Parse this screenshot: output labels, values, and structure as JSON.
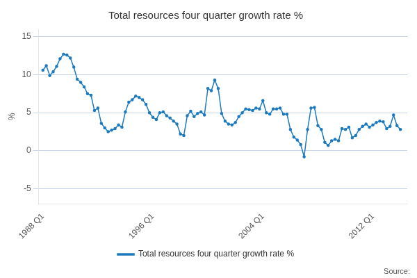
{
  "chart_data": {
    "type": "line",
    "title": "Total resources four quarter growth rate %",
    "ylabel": "%",
    "annotations": [
      "Source:"
    ],
    "x": [
      1988,
      1988.25,
      1988.5,
      1988.75,
      1989,
      1989.25,
      1989.5,
      1989.75,
      1990,
      1990.25,
      1990.5,
      1990.75,
      1991,
      1991.25,
      1991.5,
      1991.75,
      1992,
      1992.25,
      1992.5,
      1992.75,
      1993,
      1993.25,
      1993.5,
      1993.75,
      1994,
      1994.25,
      1994.5,
      1994.75,
      1995,
      1995.25,
      1995.5,
      1995.75,
      1996,
      1996.25,
      1996.5,
      1996.75,
      1997,
      1997.25,
      1997.5,
      1997.75,
      1998,
      1998.25,
      1998.5,
      1998.75,
      1999,
      1999.25,
      1999.5,
      1999.75,
      2000,
      2000.25,
      2000.5,
      2000.75,
      2001,
      2001.25,
      2001.5,
      2001.75,
      2002,
      2002.25,
      2002.5,
      2002.75,
      2003,
      2003.25,
      2003.5,
      2003.75,
      2004,
      2004.25,
      2004.5,
      2004.75,
      2005,
      2005.25,
      2005.5,
      2005.75,
      2006,
      2006.25,
      2006.5,
      2006.75,
      2007,
      2007.25,
      2007.5,
      2007.75,
      2008,
      2008.25,
      2008.5,
      2008.75,
      2009,
      2009.25,
      2009.5,
      2009.75,
      2010,
      2010.25,
      2010.5,
      2010.75,
      2011,
      2011.25,
      2011.5,
      2011.75,
      2012,
      2012.25,
      2012.5,
      2012.75,
      2013,
      2013.25,
      2013.5,
      2013.75,
      2014
    ],
    "series": [
      {
        "name": "Total resources four quarter growth rate %",
        "color": "#1c7abf",
        "marker": "point",
        "values": [
          10.6,
          11.2,
          9.9,
          10.4,
          11.1,
          12.1,
          12.7,
          12.6,
          12.2,
          11.0,
          9.4,
          9.0,
          8.4,
          7.5,
          7.3,
          5.3,
          5.6,
          3.6,
          3.0,
          2.5,
          2.7,
          2.9,
          3.4,
          3.1,
          5.1,
          6.4,
          6.7,
          7.2,
          7.0,
          6.7,
          6.1,
          5.0,
          4.4,
          4.1,
          5.0,
          5.1,
          4.6,
          4.3,
          3.9,
          3.5,
          2.2,
          2.0,
          4.6,
          5.2,
          4.5,
          4.9,
          5.1,
          4.7,
          8.2,
          7.9,
          9.3,
          8.2,
          4.9,
          3.9,
          3.5,
          3.4,
          3.7,
          4.5,
          5.0,
          5.5,
          5.4,
          5.3,
          5.6,
          5.5,
          6.6,
          5.0,
          4.8,
          5.5,
          5.5,
          5.6,
          4.8,
          4.8,
          2.8,
          1.8,
          1.4,
          0.8,
          -0.8,
          2.8,
          5.6,
          5.7,
          3.3,
          2.8,
          1.1,
          0.7,
          1.3,
          1.5,
          1.3,
          2.9,
          2.8,
          3.1,
          1.7,
          2.0,
          2.8,
          3.2,
          3.5,
          3.1,
          3.4,
          3.7,
          3.9,
          3.8,
          2.9,
          3.2,
          4.7,
          3.3,
          2.8
        ]
      }
    ],
    "xlim": [
      1987.7,
      2014.5
    ],
    "xticks": [
      {
        "value": 1988,
        "label": "1988 Q1"
      },
      {
        "value": 1996,
        "label": "1996 Q1"
      },
      {
        "value": 2004,
        "label": "2004 Q1"
      },
      {
        "value": 2012,
        "label": "2012 Q1"
      }
    ],
    "ylim": [
      -7,
      16
    ],
    "yticks": [
      -5,
      0,
      5,
      10,
      15
    ],
    "grid": true,
    "legend": "bottom"
  }
}
